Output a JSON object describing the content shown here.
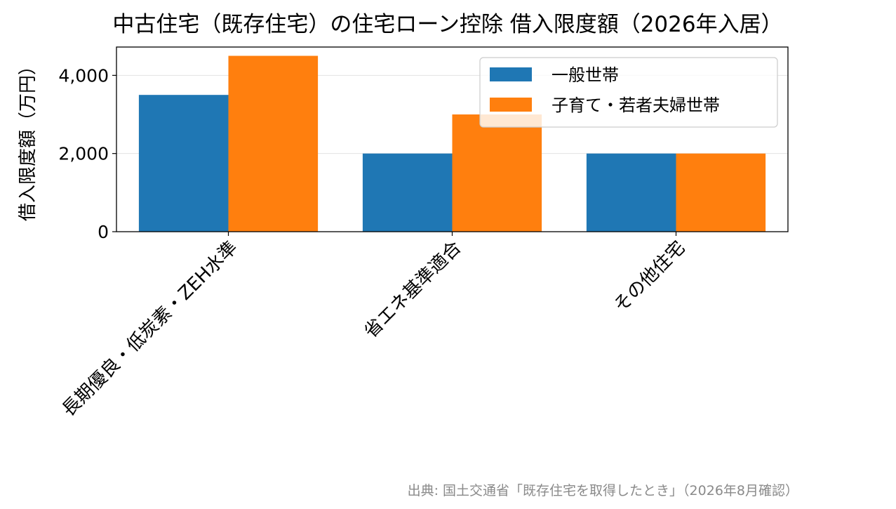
{
  "chart_data": {
    "type": "bar",
    "title": "中古住宅（既存住宅）の住宅ローン控除 借入限度額（2026年入居）",
    "xlabel": "",
    "ylabel": "借入限度額（万円）",
    "categories": [
      "長期優良・低炭素・ZEH水準",
      "省エネ基準適合",
      "その他住宅"
    ],
    "series": [
      {
        "name": "一般世帯",
        "values": [
          3500,
          2000,
          2000
        ],
        "color": "#1f77b4"
      },
      {
        "name": "子育て・若者夫婦世帯",
        "values": [
          4500,
          3000,
          2000
        ],
        "color": "#ff7f0e"
      }
    ],
    "ylim": [
      0,
      4725
    ],
    "yticks": [
      0,
      2000,
      4000
    ],
    "ytick_labels": [
      "0",
      "2,000",
      "4,000"
    ],
    "grid": "y",
    "legend_position": "top-right",
    "source_note": "出典: 国土交通省「既存住宅を取得したとき」（2026年8月確認）"
  }
}
